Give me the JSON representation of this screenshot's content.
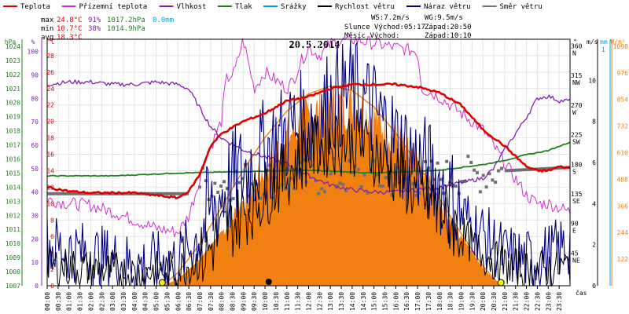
{
  "chart_data": {
    "type": "line",
    "title": "20.5.2014",
    "legend": [
      {
        "name": "Teplota",
        "color": "#e00000"
      },
      {
        "name": "Přízemní teplota",
        "color": "#d030d0"
      },
      {
        "name": "Vlhkost",
        "color": "#8020b0"
      },
      {
        "name": "Tlak",
        "color": "#208020"
      },
      {
        "name": "Srážky",
        "color": "#00a0e0"
      },
      {
        "name": "Rychlost větru",
        "color": "#000000"
      },
      {
        "name": "Náraz větru",
        "color": "#000080"
      },
      {
        "name": "Směr větru",
        "color": "#707070"
      }
    ],
    "stats": {
      "max": {
        "label": "max",
        "temp": "24.8°C",
        "hum": "91%",
        "press": "1017.2hPa",
        "rain": "0.0mm"
      },
      "min": {
        "label": "min",
        "temp": "10.7°C",
        "hum": "38%",
        "press": "1014.9hPa"
      },
      "avg": {
        "label": "avg",
        "temp": "18.3°C"
      },
      "ws": "WS:7.2m/s",
      "wg": "WG:9.5m/s",
      "sun": "Slunce Východ:05:17",
      "sunset": "Západ:20:50",
      "moon": "Měsíc  Východ:",
      "moonset": "Západ:10:10"
    },
    "axes_left": {
      "hpa": {
        "unit": "hPa",
        "ticks": [
          "1024",
          "1023",
          "1022",
          "1021",
          "1020",
          "1019",
          "1018",
          "1017",
          "1016",
          "1015",
          "1014",
          "1013",
          "1012",
          "1011",
          "1010",
          "1009",
          "1008",
          "1007"
        ]
      },
      "pct": {
        "unit": "%",
        "ticks": [
          "100",
          "90",
          "80",
          "70",
          "60",
          "50",
          "40",
          "30",
          "20",
          "10",
          "0"
        ]
      },
      "degc": {
        "unit": "°C",
        "ticks": [
          "28",
          "26",
          "24",
          "22",
          "20",
          "18",
          "16",
          "14",
          "12",
          "10",
          "8",
          "6",
          "4",
          "2",
          "0"
        ]
      }
    },
    "axes_right": {
      "dir": {
        "unit": "°",
        "ticks": [
          {
            "v": "360",
            "l": "N"
          },
          {
            "v": "315",
            "l": "NW"
          },
          {
            "v": "270",
            "l": "W"
          },
          {
            "v": "225",
            "l": "SW"
          },
          {
            "v": "180",
            "l": "S"
          },
          {
            "v": "135",
            "l": "SE"
          },
          {
            "v": "90",
            "l": "E"
          },
          {
            "v": "45",
            "l": "NE"
          }
        ]
      },
      "ms": {
        "unit": "m/s",
        "ticks": [
          "10",
          "8",
          "6",
          "4",
          "2",
          "0"
        ]
      },
      "mm": {
        "unit": "mm",
        "ticks": [
          "1"
        ]
      },
      "wm2": {
        "unit": "W/m²",
        "ticks": [
          "1098",
          "976",
          "854",
          "732",
          "610",
          "488",
          "366",
          "244",
          "122"
        ]
      }
    },
    "x_ticks": [
      "00:00",
      "00:30",
      "01:00",
      "01:30",
      "02:00",
      "02:30",
      "03:00",
      "03:30",
      "04:00",
      "04:30",
      "05:00",
      "05:30",
      "06:00",
      "06:30",
      "07:00",
      "07:30",
      "08:00",
      "08:30",
      "09:00",
      "09:30",
      "10:00",
      "10:30",
      "11:00",
      "11:30",
      "12:00",
      "12:30",
      "13:00",
      "13:30",
      "14:00",
      "14:30",
      "15:00",
      "15:30",
      "16:00",
      "16:30",
      "17:00",
      "17:30",
      "18:00",
      "18:30",
      "19:00",
      "19:30",
      "20:00",
      "20:30",
      "21:00",
      "21:30",
      "22:00",
      "22:30",
      "23:00",
      "23:30"
    ],
    "x_unit": "čas",
    "x_range_hours": [
      0,
      24
    ],
    "series": [
      {
        "name": "Teplota",
        "axis": "degc",
        "color": "#e00000",
        "x": [
          0,
          1,
          2,
          3,
          4,
          5,
          6,
          6.5,
          7,
          7.5,
          8,
          9,
          10,
          11,
          12,
          13,
          14,
          15,
          16,
          17,
          18,
          19,
          20,
          21,
          22,
          22.5,
          23,
          23.5,
          24
        ],
        "y": [
          12,
          11.5,
          11.3,
          11.3,
          11.3,
          11,
          10.7,
          11.5,
          13.5,
          17,
          18.5,
          20,
          21,
          22.5,
          23,
          24,
          24.5,
          24.5,
          24.5,
          24.2,
          23.5,
          22,
          19,
          17,
          14.5,
          14,
          14,
          14.5,
          14.3
        ]
      },
      {
        "name": "Přízemní teplota",
        "axis": "degc",
        "color": "#d030d0",
        "x": [
          0,
          1,
          2,
          3,
          4,
          5,
          6,
          6.5,
          7,
          7.3,
          7.6,
          8,
          8.2,
          8.6,
          9,
          9.5,
          10,
          11,
          11.3,
          11.6,
          12,
          12.5,
          13,
          14,
          15,
          16,
          17,
          17.2,
          18,
          19,
          20,
          21,
          22,
          22.5,
          23,
          24
        ],
        "y": [
          10.5,
          10,
          9.8,
          9,
          8,
          7,
          6.5,
          8.5,
          13,
          16,
          17.5,
          20,
          25,
          26,
          30,
          24,
          26,
          24,
          25,
          27,
          29,
          28,
          29.5,
          30,
          29.5,
          29,
          28.5,
          24,
          23,
          21,
          19,
          15,
          11,
          10,
          10,
          9
        ]
      },
      {
        "name": "Vlhkost",
        "axis": "pct",
        "color": "#8020b0",
        "x": [
          0,
          1,
          2,
          3,
          4,
          5,
          6,
          6.5,
          7,
          7.5,
          8,
          9,
          10,
          11,
          12,
          13,
          14,
          15,
          16,
          17,
          18,
          19,
          20,
          20.5,
          21,
          22,
          22.5,
          23,
          23.5,
          24
        ],
        "y": [
          86,
          87,
          87,
          86,
          86,
          87,
          86,
          84,
          76,
          68,
          63,
          58,
          55,
          52,
          47,
          43,
          41,
          40,
          40,
          41,
          42,
          44,
          46,
          50,
          58,
          72,
          80,
          81,
          79,
          79
        ]
      },
      {
        "name": "Tlak",
        "axis": "hpa",
        "color": "#208020",
        "x": [
          0,
          3,
          6,
          9,
          12,
          15,
          18,
          19,
          20,
          21,
          22,
          23,
          24
        ],
        "y": [
          1014.8,
          1014.8,
          1015,
          1015.1,
          1015.2,
          1015,
          1015.2,
          1015.4,
          1015.6,
          1015.9,
          1016.3,
          1016.6,
          1017.2
        ]
      },
      {
        "name": "Směr větru",
        "axis": "dir",
        "color": "#707070",
        "x": [
          0,
          6.5,
          7,
          9,
          12,
          14,
          16,
          18,
          20,
          21,
          22,
          24
        ],
        "y": [
          140,
          140,
          155,
          160,
          165,
          165,
          160,
          165,
          170,
          175,
          180,
          180
        ]
      },
      {
        "name": "Rychlost větru",
        "axis": "ms",
        "color": "#000000",
        "x": [
          0,
          2,
          4,
          6,
          7,
          8,
          9,
          10,
          11,
          12,
          13,
          14,
          15,
          16,
          17,
          18,
          19,
          20,
          21,
          22,
          23,
          24
        ],
        "y": [
          1.0,
          0.8,
          0.6,
          0.8,
          1.2,
          2.5,
          3.5,
          4.5,
          5.5,
          6.5,
          7.0,
          7.0,
          6.5,
          5.5,
          4.5,
          3.8,
          2.5,
          1.5,
          1.0,
          0.7,
          0.8,
          1.0
        ]
      },
      {
        "name": "Náraz větru",
        "axis": "ms",
        "color": "#000080",
        "x": [
          0,
          2,
          4,
          6,
          7,
          8,
          9,
          10,
          11,
          12,
          13,
          14,
          15,
          16,
          17,
          18,
          19,
          20,
          21,
          22,
          23,
          24
        ],
        "y": [
          2.0,
          1.5,
          1.0,
          1.2,
          2.5,
          4.5,
          5.5,
          6.5,
          7.5,
          8.0,
          9.0,
          9.5,
          8.5,
          7.0,
          6.0,
          5.0,
          3.5,
          2.5,
          1.5,
          1.2,
          1.5,
          2.0
        ]
      },
      {
        "name": "Sluneční záření",
        "axis": "wm2",
        "color": "#f08010",
        "x": [
          5.3,
          6,
          7,
          8,
          9,
          10,
          11,
          12,
          13,
          14,
          15,
          16,
          17,
          18,
          19,
          20,
          20.8
        ],
        "y": [
          0,
          30,
          120,
          250,
          400,
          560,
          700,
          800,
          850,
          860,
          800,
          700,
          560,
          400,
          230,
          80,
          0
        ]
      },
      {
        "name": "Teoretické záření",
        "axis": "wm2",
        "color": "#f08010",
        "x": [
          5.3,
          6,
          7,
          8,
          9,
          10,
          11,
          12,
          13,
          14,
          15,
          16,
          17,
          18,
          19,
          20,
          20.8
        ],
        "y": [
          0,
          60,
          190,
          360,
          530,
          680,
          800,
          880,
          915,
          895,
          820,
          700,
          560,
          400,
          240,
          90,
          0
        ]
      }
    ],
    "sun_markers": [
      {
        "x": 5.28,
        "label": "sunrise"
      },
      {
        "x": 20.83,
        "label": "sunset"
      }
    ],
    "moon_marker": {
      "x": 10.17
    }
  }
}
